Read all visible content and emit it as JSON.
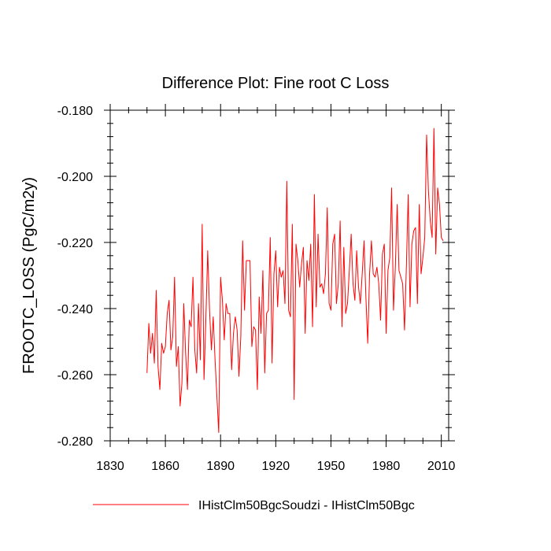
{
  "chart_data": {
    "type": "line",
    "title": "Difference Plot: Fine root C Loss",
    "xlabel": "",
    "ylabel": "FROOTC_LOSS  (PgC/m2y)",
    "xlim": [
      1830,
      2014
    ],
    "ylim": [
      -0.28,
      -0.18
    ],
    "x_ticks": [
      1830,
      1860,
      1890,
      1920,
      1950,
      1980,
      2010
    ],
    "y_ticks": [
      -0.28,
      -0.26,
      -0.24,
      -0.22,
      -0.2,
      -0.18
    ],
    "x_tick_labels": [
      "1830",
      "1860",
      "1890",
      "1920",
      "1950",
      "1980",
      "2010"
    ],
    "y_tick_labels": [
      "-0.280",
      "-0.260",
      "-0.240",
      "-0.220",
      "-0.200",
      "-0.180"
    ],
    "grid": false,
    "legend_position": "bottom",
    "series": [
      {
        "name": "IHistClm50BgcSoudzi - IHistClm50Bgc",
        "color": "#ff0000",
        "x_start": 1850,
        "x_step": 1,
        "values": [
          -0.2595,
          -0.2445,
          -0.2535,
          -0.2475,
          -0.2565,
          -0.2345,
          -0.2575,
          -0.2645,
          -0.2505,
          -0.2535,
          -0.2515,
          -0.2415,
          -0.2375,
          -0.2525,
          -0.2485,
          -0.2305,
          -0.2575,
          -0.2515,
          -0.2695,
          -0.2625,
          -0.2385,
          -0.2535,
          -0.2645,
          -0.2435,
          -0.2455,
          -0.2305,
          -0.2525,
          -0.2595,
          -0.2385,
          -0.2555,
          -0.2145,
          -0.2615,
          -0.2435,
          -0.2225,
          -0.2405,
          -0.2525,
          -0.2425,
          -0.2555,
          -0.2665,
          -0.2775,
          -0.2305,
          -0.2375,
          -0.2495,
          -0.2385,
          -0.2415,
          -0.2415,
          -0.2585,
          -0.2475,
          -0.2425,
          -0.2465,
          -0.2605,
          -0.2485,
          -0.2195,
          -0.2405,
          -0.2255,
          -0.2255,
          -0.2255,
          -0.2515,
          -0.2455,
          -0.2465,
          -0.2645,
          -0.2365,
          -0.2475,
          -0.2285,
          -0.2595,
          -0.2415,
          -0.2405,
          -0.2185,
          -0.2565,
          -0.2295,
          -0.2225,
          -0.2395,
          -0.2275,
          -0.2305,
          -0.2285,
          -0.2385,
          -0.2015,
          -0.2405,
          -0.2425,
          -0.2145,
          -0.2675,
          -0.2205,
          -0.2255,
          -0.2335,
          -0.2265,
          -0.2215,
          -0.2475,
          -0.2255,
          -0.2315,
          -0.2205,
          -0.2455,
          -0.2055,
          -0.2395,
          -0.2175,
          -0.2335,
          -0.2325,
          -0.2355,
          -0.2295,
          -0.2095,
          -0.2385,
          -0.2405,
          -0.2205,
          -0.2175,
          -0.2385,
          -0.2325,
          -0.2135,
          -0.2455,
          -0.2215,
          -0.2415,
          -0.2385,
          -0.2285,
          -0.2175,
          -0.2325,
          -0.2375,
          -0.2225,
          -0.2335,
          -0.2385,
          -0.2295,
          -0.2195,
          -0.2365,
          -0.2505,
          -0.2295,
          -0.2195,
          -0.2295,
          -0.2305,
          -0.2275,
          -0.2325,
          -0.2435,
          -0.2235,
          -0.2205,
          -0.2475,
          -0.2285,
          -0.2245,
          -0.2035,
          -0.2405,
          -0.2275,
          -0.2085,
          -0.2285,
          -0.2305,
          -0.2325,
          -0.2465,
          -0.2275,
          -0.2055,
          -0.2395,
          -0.2205,
          -0.2165,
          -0.2155,
          -0.2385,
          -0.2085,
          -0.2295,
          -0.2245,
          -0.2185,
          -0.1875,
          -0.2045,
          -0.2135,
          -0.2185,
          -0.1855,
          -0.2235,
          -0.2035,
          -0.2085,
          -0.2185,
          -0.2195
        ]
      }
    ]
  }
}
